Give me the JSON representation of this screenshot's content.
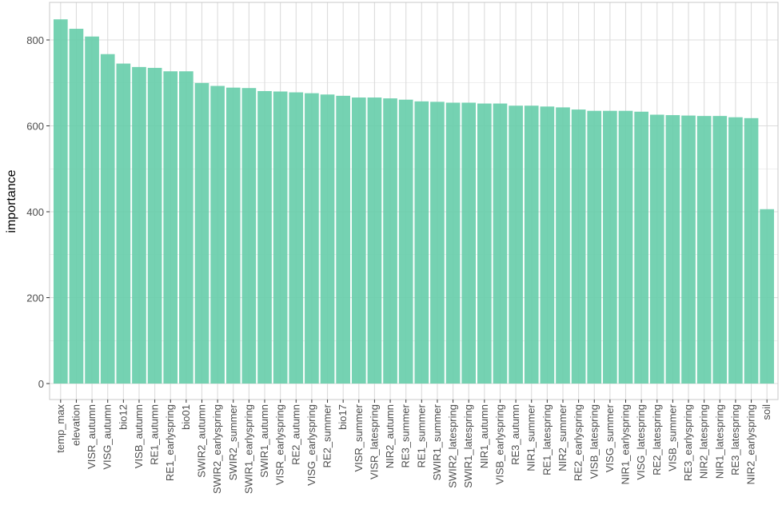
{
  "colors": {
    "bar": "#66CDAA",
    "grid": "#DCDCDC",
    "panel_border": "#C8C8C8",
    "tick_text": "#4D4D4D",
    "title_text": "#000000"
  },
  "chart_data": {
    "type": "bar",
    "xlabel": "",
    "ylabel": "importance",
    "ylim": [
      0,
      860
    ],
    "yticks": [
      0,
      200,
      400,
      600,
      800
    ],
    "grid": true,
    "legend": "none",
    "categories": [
      "temp_max",
      "elevation",
      "VISR_autumn",
      "VISG_autumn",
      "bio12",
      "VISB_autumn",
      "RE1_autumn",
      "RE1_earlyspring",
      "bio01",
      "SWIR2_autumn",
      "SWIR2_earlyspring",
      "SWIR2_summer",
      "SWIR1_earlyspring",
      "SWIR1_autumn",
      "VISR_earlyspring",
      "RE2_autumn",
      "VISG_earlyspring",
      "RE2_summer",
      "bio17",
      "VISR_summer",
      "VISR_latespring",
      "NIR2_autumn",
      "RE3_summer",
      "RE1_summer",
      "SWIR1_summer",
      "SWIR2_latespring",
      "SWIR1_latespring",
      "NIR1_autumn",
      "VISB_earlyspring",
      "RE3_autumn",
      "NIR1_summer",
      "RE1_latespring",
      "NIR2_summer",
      "RE2_earlyspring",
      "VISB_latespring",
      "VISG_summer",
      "NIR1_earlyspring",
      "VISG_latespring",
      "RE2_latespring",
      "VISB_summer",
      "RE3_earlyspring",
      "NIR2_latespring",
      "NIR1_latespring",
      "RE3_latespring",
      "NIR2_earlyspring",
      "soil"
    ],
    "values": [
      848,
      826,
      808,
      767,
      745,
      737,
      735,
      727,
      727,
      700,
      693,
      689,
      688,
      681,
      680,
      678,
      676,
      673,
      670,
      666,
      666,
      664,
      661,
      657,
      656,
      654,
      654,
      652,
      652,
      647,
      647,
      645,
      643,
      638,
      635,
      635,
      635,
      633,
      626,
      625,
      624,
      623,
      623,
      620,
      618,
      406
    ]
  }
}
